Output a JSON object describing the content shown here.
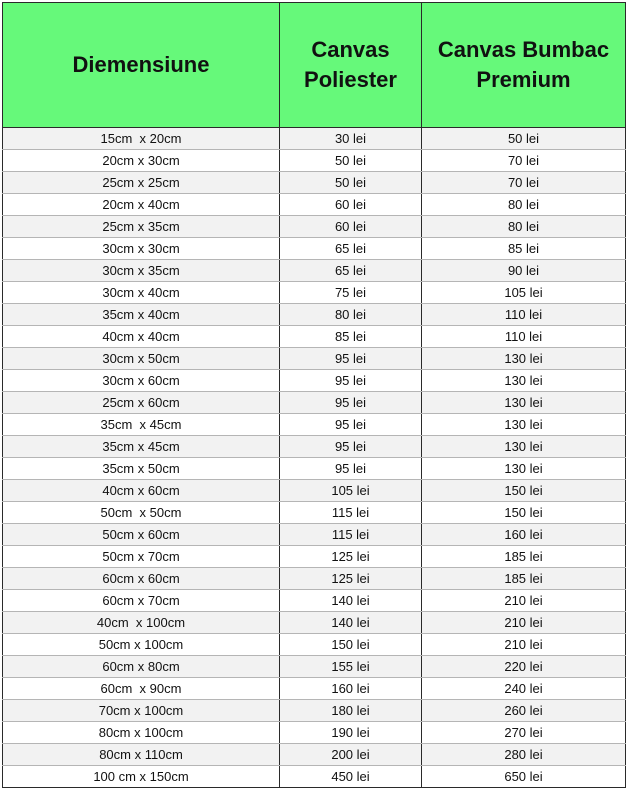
{
  "table": {
    "headers": [
      "Diemensiune",
      "Canvas Poliester",
      "Canvas Bumbac Premium"
    ],
    "rows": [
      [
        "15cm  x 20cm",
        "30 lei",
        "50 lei"
      ],
      [
        "20cm x 30cm",
        "50 lei",
        "70 lei"
      ],
      [
        "25cm x 25cm",
        "50 lei",
        "70 lei"
      ],
      [
        "20cm x 40cm",
        "60 lei",
        "80 lei"
      ],
      [
        "25cm x 35cm",
        "60 lei",
        "80 lei"
      ],
      [
        "30cm x 30cm",
        "65 lei",
        "85 lei"
      ],
      [
        "30cm x 35cm",
        "65 lei",
        "90 lei"
      ],
      [
        "30cm x 40cm",
        "75 lei",
        "105 lei"
      ],
      [
        "35cm x 40cm",
        "80 lei",
        "110 lei"
      ],
      [
        "40cm x 40cm",
        "85 lei",
        "110 lei"
      ],
      [
        "30cm x 50cm",
        "95 lei",
        "130 lei"
      ],
      [
        "30cm x 60cm",
        "95 lei",
        "130 lei"
      ],
      [
        "25cm x 60cm",
        "95 lei",
        "130 lei"
      ],
      [
        "35cm  x 45cm",
        "95 lei",
        "130 lei"
      ],
      [
        "35cm x 45cm",
        "95 lei",
        "130 lei"
      ],
      [
        "35cm x 50cm",
        "95 lei",
        "130 lei"
      ],
      [
        "40cm x 60cm",
        "105 lei",
        "150 lei"
      ],
      [
        "50cm  x 50cm",
        "115 lei",
        "150 lei"
      ],
      [
        "50cm x 60cm",
        "115 lei",
        "160 lei"
      ],
      [
        "50cm x 70cm",
        "125 lei",
        "185 lei"
      ],
      [
        "60cm x 60cm",
        "125 lei",
        "185 lei"
      ],
      [
        "60cm x 70cm",
        "140 lei",
        "210 lei"
      ],
      [
        "40cm  x 100cm",
        "140 lei",
        "210 lei"
      ],
      [
        "50cm x 100cm",
        "150 lei",
        "210 lei"
      ],
      [
        "60cm x 80cm",
        "155 lei",
        "220 lei"
      ],
      [
        "60cm  x 90cm",
        "160 lei",
        "240 lei"
      ],
      [
        "70cm x 100cm",
        "180 lei",
        "260 lei"
      ],
      [
        "80cm x 100cm",
        "190 lei",
        "270 lei"
      ],
      [
        "80cm x 110cm",
        "200 lei",
        "280 lei"
      ],
      [
        "100 cm x 150cm",
        "450 lei",
        "650 lei"
      ]
    ]
  },
  "colors": {
    "header_background": "#66f97a",
    "row_stripe": "#f2f2f2",
    "border": "#2a2a2a"
  }
}
